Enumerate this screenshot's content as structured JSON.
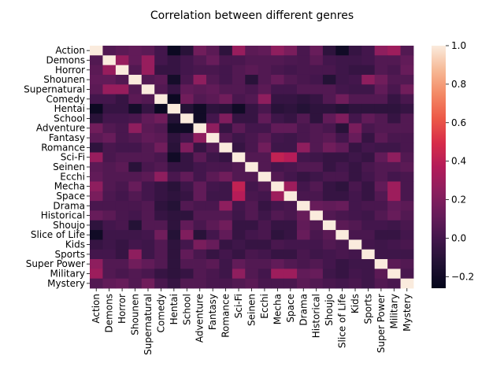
{
  "chart_data": {
    "type": "heatmap",
    "title": "Correlation between different genres",
    "labels": [
      "Action",
      "Demons",
      "Horror",
      "Shounen",
      "Supernatural",
      "Comedy",
      "Hentai",
      "School",
      "Adventure",
      "Fantasy",
      "Romance",
      "Sci-Fi",
      "Seinen",
      "Ecchi",
      "Mecha",
      "Space",
      "Drama",
      "Historical",
      "Shoujo",
      "Slice of Life",
      "Kids",
      "Sports",
      "Super Power",
      "Military",
      "Mystery"
    ],
    "values": [
      [
        1.0,
        0.05,
        0.08,
        0.1,
        0.08,
        0.0,
        -0.22,
        -0.1,
        0.15,
        0.08,
        -0.08,
        0.28,
        0.08,
        0.1,
        0.25,
        0.18,
        0.02,
        0.12,
        -0.08,
        -0.2,
        -0.05,
        0.0,
        0.25,
        0.3,
        0.05
      ],
      [
        0.05,
        1.0,
        0.28,
        0.1,
        0.28,
        0.0,
        -0.05,
        0.0,
        0.05,
        0.12,
        0.02,
        0.02,
        0.05,
        0.05,
        0.05,
        0.03,
        0.02,
        0.08,
        0.0,
        -0.02,
        -0.02,
        0.0,
        0.05,
        0.05,
        0.1
      ],
      [
        0.08,
        0.28,
        1.0,
        0.05,
        0.28,
        -0.05,
        -0.05,
        0.0,
        0.02,
        0.02,
        0.0,
        0.05,
        0.08,
        0.05,
        0.02,
        0.0,
        0.02,
        0.02,
        0.02,
        -0.02,
        -0.05,
        -0.05,
        0.05,
        0.02,
        0.12
      ],
      [
        0.1,
        0.1,
        0.05,
        1.0,
        0.05,
        0.08,
        -0.18,
        0.02,
        0.25,
        0.05,
        0.0,
        0.05,
        -0.1,
        0.05,
        0.12,
        0.05,
        0.02,
        0.0,
        -0.12,
        -0.02,
        0.0,
        0.25,
        0.15,
        0.05,
        0.05
      ],
      [
        0.08,
        0.28,
        0.28,
        0.05,
        1.0,
        0.05,
        -0.05,
        0.1,
        0.08,
        0.1,
        0.05,
        0.05,
        0.02,
        0.08,
        0.0,
        0.0,
        0.05,
        0.05,
        0.05,
        0.0,
        -0.02,
        -0.02,
        0.1,
        0.02,
        0.15
      ],
      [
        0.0,
        0.0,
        -0.05,
        0.08,
        0.05,
        1.0,
        -0.22,
        0.15,
        0.05,
        0.08,
        0.15,
        0.02,
        0.05,
        0.25,
        -0.05,
        -0.05,
        -0.08,
        -0.05,
        0.05,
        0.15,
        0.05,
        0.05,
        0.05,
        -0.05,
        0.02
      ],
      [
        -0.22,
        -0.05,
        -0.05,
        -0.18,
        -0.05,
        -0.22,
        1.0,
        -0.12,
        -0.2,
        -0.08,
        -0.1,
        -0.2,
        -0.05,
        0.02,
        -0.1,
        -0.08,
        -0.12,
        -0.08,
        -0.08,
        -0.12,
        -0.08,
        -0.08,
        -0.08,
        -0.08,
        -0.05
      ],
      [
        -0.1,
        0.0,
        0.0,
        0.02,
        0.1,
        0.15,
        -0.12,
        1.0,
        -0.2,
        0.0,
        0.2,
        -0.05,
        -0.05,
        0.1,
        -0.02,
        -0.05,
        0.05,
        -0.08,
        0.1,
        0.2,
        0.0,
        0.1,
        0.05,
        -0.05,
        0.05
      ],
      [
        0.15,
        0.05,
        0.02,
        0.25,
        0.08,
        0.05,
        -0.2,
        -0.2,
        1.0,
        0.25,
        -0.05,
        0.08,
        0.0,
        0.0,
        0.1,
        0.1,
        0.02,
        0.05,
        0.02,
        -0.1,
        0.18,
        0.02,
        0.05,
        0.05,
        0.05
      ],
      [
        0.08,
        0.12,
        0.02,
        0.05,
        0.1,
        0.08,
        -0.08,
        0.0,
        0.25,
        1.0,
        0.05,
        -0.02,
        0.02,
        0.08,
        0.0,
        -0.02,
        0.02,
        0.05,
        0.08,
        0.0,
        0.12,
        -0.05,
        0.08,
        0.02,
        0.02
      ],
      [
        -0.08,
        0.02,
        0.0,
        0.0,
        0.05,
        0.15,
        -0.1,
        0.2,
        -0.05,
        0.05,
        1.0,
        -0.05,
        0.02,
        0.15,
        -0.02,
        -0.02,
        0.25,
        0.05,
        0.15,
        0.1,
        -0.05,
        0.0,
        -0.02,
        -0.02,
        0.02
      ],
      [
        0.28,
        0.02,
        0.05,
        0.05,
        0.05,
        0.02,
        -0.2,
        -0.05,
        0.08,
        -0.02,
        -0.05,
        1.0,
        0.05,
        0.05,
        0.42,
        0.38,
        0.0,
        -0.02,
        -0.05,
        -0.05,
        -0.02,
        -0.05,
        0.1,
        0.25,
        0.05
      ],
      [
        0.08,
        0.05,
        0.08,
        -0.1,
        0.02,
        0.05,
        -0.05,
        -0.05,
        0.0,
        0.02,
        0.02,
        0.05,
        1.0,
        0.05,
        0.0,
        0.02,
        0.05,
        0.05,
        -0.05,
        0.0,
        -0.05,
        0.02,
        0.05,
        0.05,
        0.08
      ],
      [
        0.1,
        0.05,
        0.05,
        0.05,
        0.08,
        0.25,
        0.02,
        0.1,
        0.0,
        0.08,
        0.15,
        0.05,
        0.05,
        1.0,
        0.05,
        0.0,
        -0.05,
        -0.02,
        0.02,
        0.02,
        -0.05,
        0.0,
        0.05,
        0.0,
        0.02
      ],
      [
        0.25,
        0.05,
        0.02,
        0.12,
        0.0,
        -0.05,
        -0.1,
        -0.02,
        0.1,
        0.0,
        -0.02,
        0.42,
        0.0,
        0.05,
        1.0,
        0.3,
        0.0,
        0.05,
        -0.05,
        -0.08,
        0.02,
        -0.05,
        0.1,
        0.3,
        0.02
      ],
      [
        0.18,
        0.03,
        0.0,
        0.05,
        0.0,
        -0.05,
        -0.08,
        -0.05,
        0.1,
        -0.02,
        -0.02,
        0.38,
        0.02,
        0.0,
        0.3,
        1.0,
        0.02,
        0.02,
        -0.05,
        -0.05,
        0.0,
        -0.05,
        0.05,
        0.3,
        0.02
      ],
      [
        0.02,
        0.02,
        0.02,
        0.02,
        0.05,
        -0.08,
        -0.12,
        0.05,
        0.02,
        0.02,
        0.25,
        0.0,
        0.05,
        -0.05,
        0.0,
        0.02,
        1.0,
        0.12,
        0.1,
        0.12,
        0.0,
        0.02,
        0.02,
        0.1,
        0.08
      ],
      [
        0.12,
        0.08,
        0.02,
        0.0,
        0.05,
        -0.05,
        -0.08,
        -0.08,
        0.05,
        0.05,
        0.05,
        -0.02,
        0.05,
        -0.02,
        0.05,
        0.02,
        0.12,
        1.0,
        0.05,
        0.02,
        0.0,
        -0.02,
        0.05,
        0.12,
        0.05
      ],
      [
        -0.08,
        0.0,
        0.02,
        -0.12,
        0.05,
        0.05,
        -0.08,
        0.1,
        0.02,
        0.08,
        0.15,
        -0.05,
        -0.05,
        0.02,
        -0.05,
        -0.05,
        0.1,
        0.05,
        1.0,
        0.08,
        0.05,
        0.0,
        0.0,
        -0.02,
        0.02
      ],
      [
        -0.2,
        -0.02,
        -0.02,
        -0.02,
        0.0,
        0.15,
        -0.12,
        0.2,
        -0.1,
        0.0,
        0.1,
        -0.05,
        0.0,
        0.02,
        -0.08,
        -0.05,
        0.12,
        0.02,
        0.08,
        1.0,
        0.02,
        0.02,
        -0.05,
        -0.05,
        0.0
      ],
      [
        -0.05,
        -0.02,
        -0.05,
        0.0,
        -0.02,
        0.05,
        -0.08,
        0.0,
        0.18,
        0.12,
        -0.05,
        -0.02,
        -0.05,
        -0.05,
        0.02,
        0.0,
        0.0,
        0.0,
        0.05,
        0.02,
        1.0,
        0.0,
        -0.02,
        0.0,
        0.02
      ],
      [
        0.0,
        0.0,
        -0.05,
        0.25,
        -0.02,
        0.05,
        -0.08,
        0.1,
        0.02,
        -0.05,
        0.0,
        -0.05,
        0.02,
        0.0,
        -0.05,
        -0.05,
        0.02,
        -0.02,
        0.0,
        0.02,
        0.0,
        1.0,
        -0.02,
        -0.02,
        -0.02
      ],
      [
        0.25,
        0.05,
        0.05,
        0.15,
        0.1,
        0.05,
        -0.08,
        0.05,
        0.05,
        0.08,
        -0.02,
        0.1,
        0.05,
        0.05,
        0.1,
        0.05,
        0.02,
        0.05,
        0.0,
        -0.05,
        -0.02,
        -0.02,
        1.0,
        0.08,
        0.05
      ],
      [
        0.3,
        0.05,
        0.02,
        0.05,
        0.02,
        -0.05,
        -0.08,
        -0.05,
        0.05,
        0.02,
        -0.02,
        0.25,
        0.05,
        0.0,
        0.3,
        0.3,
        0.1,
        0.12,
        -0.02,
        -0.05,
        0.0,
        -0.02,
        0.08,
        1.0,
        0.02
      ],
      [
        0.05,
        0.1,
        0.12,
        0.05,
        0.15,
        0.02,
        -0.05,
        0.05,
        0.05,
        0.02,
        0.02,
        0.05,
        0.08,
        0.02,
        0.02,
        0.02,
        0.08,
        0.05,
        0.02,
        0.0,
        0.02,
        -0.02,
        0.05,
        0.02,
        1.0
      ]
    ],
    "colorbar": {
      "min": -0.26,
      "max": 1.0,
      "ticks": [
        "1.0",
        "0.8",
        "0.6",
        "0.4",
        "0.2",
        "0.0",
        "−0.2"
      ],
      "tick_values": [
        1.0,
        0.8,
        0.6,
        0.4,
        0.2,
        0.0,
        -0.2
      ]
    },
    "colormap": "rocket"
  }
}
